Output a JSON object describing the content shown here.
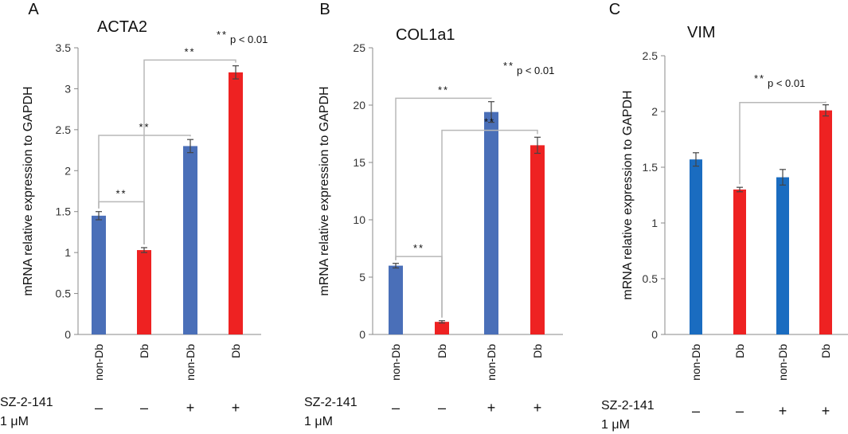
{
  "chart_data": [
    {
      "type": "bar",
      "panel": "A",
      "title": "ACTA2",
      "ylabel": "mRNA relative expression to GAPDH",
      "ylim": [
        0,
        3.5
      ],
      "yticks": [
        "0",
        "0.5",
        "1",
        "1.5",
        "2",
        "2.5",
        "3",
        "3.5"
      ],
      "categories": [
        "non-Db",
        "Db",
        "non-Db",
        "Db"
      ],
      "values": [
        1.45,
        1.03,
        2.3,
        3.2
      ],
      "errors": [
        0.05,
        0.03,
        0.08,
        0.08
      ],
      "colors": [
        "#4a6fb8",
        "#ee2222",
        "#4a6fb8",
        "#ee2222"
      ],
      "significance": [
        {
          "from": 0,
          "to": 1,
          "label": "**",
          "level": 1.62
        },
        {
          "from": 0,
          "to": 2,
          "label": "**",
          "level": 2.43
        },
        {
          "from": 1,
          "to": 3,
          "label": "**",
          "level": 3.35
        }
      ],
      "pnote": "p < 0.01",
      "pnote_stars": "**"
    },
    {
      "type": "bar",
      "panel": "B",
      "title": "COL1a1",
      "ylabel": "mRNA relative expression to GAPDH",
      "ylim": [
        0,
        25
      ],
      "yticks": [
        "0",
        "5",
        "10",
        "15",
        "20",
        "25"
      ],
      "categories": [
        "non-Db",
        "Db",
        "non-Db",
        "Db"
      ],
      "values": [
        6.0,
        1.1,
        19.4,
        16.5
      ],
      "errors": [
        0.2,
        0.1,
        0.9,
        0.7
      ],
      "colors": [
        "#4a6fb8",
        "#ee2222",
        "#4a6fb8",
        "#ee2222"
      ],
      "significance": [
        {
          "from": 0,
          "to": 1,
          "label": "**",
          "level": 6.8
        },
        {
          "from": 0,
          "to": 2,
          "label": "**",
          "level": 20.6
        },
        {
          "from": 1,
          "to": 3,
          "label": "**",
          "level": 17.8
        }
      ],
      "pnote": "p < 0.01",
      "pnote_stars": "**"
    },
    {
      "type": "bar",
      "panel": "C",
      "title": "VIM",
      "ylabel": "mRNA relative expression to GAPDH",
      "ylim": [
        0,
        2.5
      ],
      "yticks": [
        "0",
        "0.5",
        "1",
        "1.5",
        "2",
        "2.5"
      ],
      "categories": [
        "non-Db",
        "Db",
        "non-Db",
        "Db"
      ],
      "values": [
        1.57,
        1.3,
        1.41,
        2.01
      ],
      "errors": [
        0.06,
        0.02,
        0.07,
        0.05
      ],
      "colors": [
        "#1a6cc0",
        "#ee2222",
        "#1a6cc0",
        "#ee2222"
      ],
      "significance": [
        {
          "from": 1,
          "to": 3,
          "label": "",
          "level": 2.08
        }
      ],
      "pnote": "p < 0.01",
      "pnote_stars": "**"
    }
  ],
  "treatment": {
    "label_line1": "SZ-2-141",
    "label_line2": "1 μM",
    "signs": [
      "–",
      "–",
      "+",
      "+"
    ]
  }
}
